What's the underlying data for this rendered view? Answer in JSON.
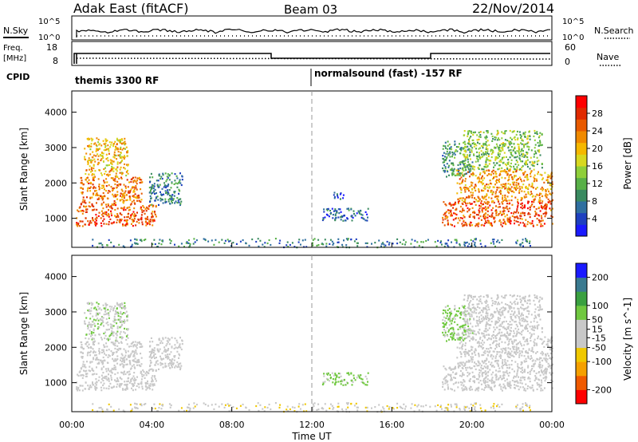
{
  "header": {
    "station": "Adak East (fitACF)",
    "beam": "Beam 03",
    "date": "22/Nov/2014"
  },
  "nsky_panel": {
    "left_label": "N.Sky",
    "right_label": "N.Search",
    "left_ticks": [
      "10^5",
      "10^0"
    ],
    "right_ticks": [
      "10^5",
      "10^0"
    ]
  },
  "freq_panel": {
    "left_label": "Freq.",
    "left_unit": "[MHz]",
    "right_label": "Nave",
    "left_ticks": [
      "18",
      "8"
    ],
    "right_ticks": [
      "60",
      "0"
    ]
  },
  "cpid": {
    "label": "CPID",
    "modes": [
      {
        "name": "themis 3300 RF",
        "start_hour": 0
      },
      {
        "name": "normalsound (fast) -157 RF",
        "start_hour": 12
      }
    ]
  },
  "chart_data": [
    {
      "type": "heatmap",
      "title": "",
      "ylabel": "Slant Range [km]",
      "xlabel": "",
      "x_ticks": [
        "00:00",
        "04:00",
        "08:00",
        "12:00",
        "16:00",
        "20:00",
        "00:00"
      ],
      "y_ticks": [
        1000,
        2000,
        3000,
        4000
      ],
      "xlim_hours": [
        0,
        24
      ],
      "ylim_km": [
        180,
        4600
      ],
      "colorbar": {
        "label": "Power [dB]",
        "ticks": [
          4,
          8,
          12,
          16,
          20,
          24,
          28
        ],
        "range": [
          0,
          32
        ],
        "colors": [
          "#1a1aff",
          "#1e40c0",
          "#2f6fa0",
          "#3a8a60",
          "#58b048",
          "#8fcf3a",
          "#d8d820",
          "#f5b800",
          "#f08a00",
          "#e85a00",
          "#e02a00",
          "#ff0000"
        ]
      },
      "regions": [
        {
          "t0": 0.2,
          "t1": 4.2,
          "r0": 800,
          "r1": 1400,
          "level": 26
        },
        {
          "t0": 0.4,
          "t1": 3.5,
          "r0": 1400,
          "r1": 2200,
          "level": 24
        },
        {
          "t0": 0.6,
          "t1": 2.8,
          "r0": 2200,
          "r1": 3300,
          "level": 20
        },
        {
          "t0": 3.8,
          "t1": 5.5,
          "r0": 1400,
          "r1": 2300,
          "level": 8
        },
        {
          "t0": 12.5,
          "t1": 14.8,
          "r0": 950,
          "r1": 1300,
          "level": 6
        },
        {
          "t0": 13.0,
          "t1": 13.6,
          "r0": 1550,
          "r1": 1750,
          "level": 4
        },
        {
          "t0": 18.5,
          "t1": 24.0,
          "r0": 800,
          "r1": 1500,
          "level": 26
        },
        {
          "t0": 19.2,
          "t1": 24.0,
          "r0": 1500,
          "r1": 2400,
          "level": 22
        },
        {
          "t0": 18.5,
          "t1": 20.0,
          "r0": 2200,
          "r1": 3200,
          "level": 10
        },
        {
          "t0": 19.5,
          "t1": 23.5,
          "r0": 2400,
          "r1": 3500,
          "level": 14
        },
        {
          "t0": 1.0,
          "t1": 23.0,
          "r0": 200,
          "r1": 450,
          "level": 8
        }
      ]
    },
    {
      "type": "heatmap",
      "title": "",
      "ylabel": "Slant Range [km]",
      "xlabel": "Time UT",
      "x_ticks": [
        "00:00",
        "04:00",
        "08:00",
        "12:00",
        "16:00",
        "20:00",
        "00:00"
      ],
      "y_ticks": [
        1000,
        2000,
        3000,
        4000
      ],
      "xlim_hours": [
        0,
        24
      ],
      "ylim_km": [
        180,
        4600
      ],
      "colorbar": {
        "label": "Velocity [m s^-1]",
        "ticks": [
          200,
          100,
          50,
          15,
          -15,
          -50,
          -100,
          -200
        ],
        "range": [
          -250,
          250
        ],
        "colors": [
          "#ff0000",
          "#f05a00",
          "#f5a000",
          "#f0c800",
          "#c8c8c8",
          "#c8c8c8",
          "#70c840",
          "#3aa040",
          "#3a7a90",
          "#1a1aff"
        ]
      },
      "regions": [
        {
          "t0": 0.2,
          "t1": 4.2,
          "r0": 800,
          "r1": 1400,
          "level": 0
        },
        {
          "t0": 0.4,
          "t1": 3.5,
          "r0": 1400,
          "r1": 2200,
          "level": 5
        },
        {
          "t0": 0.6,
          "t1": 2.8,
          "r0": 2200,
          "r1": 3300,
          "level": 40
        },
        {
          "t0": 3.8,
          "t1": 5.5,
          "r0": 1400,
          "r1": 2300,
          "level": 30
        },
        {
          "t0": 12.5,
          "t1": 14.8,
          "r0": 950,
          "r1": 1300,
          "level": 60
        },
        {
          "t0": 18.5,
          "t1": 24.0,
          "r0": 800,
          "r1": 1500,
          "level": 0
        },
        {
          "t0": 19.2,
          "t1": 24.0,
          "r0": 1500,
          "r1": 2400,
          "level": 10
        },
        {
          "t0": 18.5,
          "t1": 20.0,
          "r0": 2200,
          "r1": 3200,
          "level": 60
        },
        {
          "t0": 19.5,
          "t1": 23.5,
          "r0": 2400,
          "r1": 3500,
          "level": 5
        },
        {
          "t0": 1.0,
          "t1": 23.0,
          "r0": 200,
          "r1": 450,
          "level": -40
        }
      ]
    }
  ]
}
